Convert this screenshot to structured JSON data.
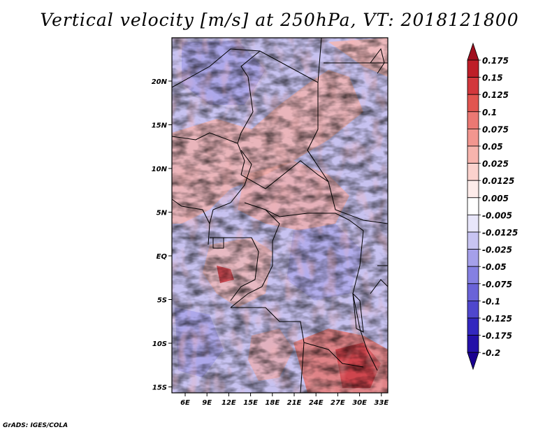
{
  "title": "Vertical velocity [m/s] at 250hPa, VT: 2018121800",
  "credit": "GrADS: IGES/COLA",
  "map": {
    "lat_ticks": [
      "20N",
      "15N",
      "10N",
      "5N",
      "EQ",
      "5S",
      "10S",
      "15S"
    ],
    "lon_ticks": [
      "6E",
      "9E",
      "12E",
      "15E",
      "18E",
      "21E",
      "24E",
      "27E",
      "30E",
      "33E"
    ]
  },
  "colorbar": {
    "labels": [
      "0.175",
      "0.15",
      "0.125",
      "0.1",
      "0.075",
      "0.05",
      "0.025",
      "0.0125",
      "0.005",
      "-0.005",
      "-0.0125",
      "-0.025",
      "-0.05",
      "-0.075",
      "-0.1",
      "-0.125",
      "-0.175",
      "-0.2"
    ],
    "colors": [
      "#a00f1e",
      "#be1e28",
      "#d2373c",
      "#e15550",
      "#eb7873",
      "#f2968f",
      "#f7b4ad",
      "#fbd2cd",
      "#fdecea",
      "#ffffff",
      "#e8e6fa",
      "#c8c4f2",
      "#a5a0ea",
      "#8580e2",
      "#6a63d8",
      "#4f47cd",
      "#3327bf",
      "#2410a8",
      "#1a0090"
    ]
  }
}
